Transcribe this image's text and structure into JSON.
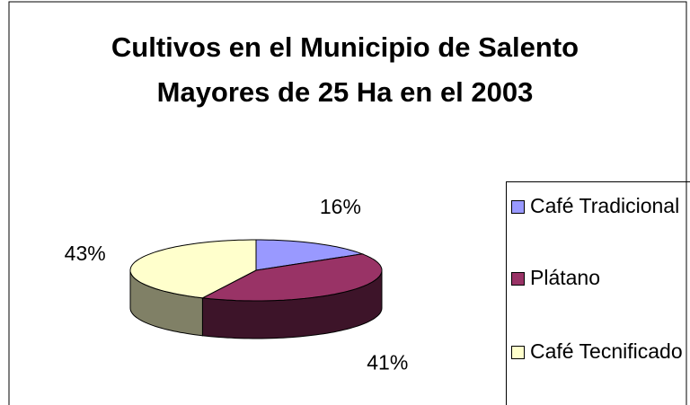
{
  "chart_data": {
    "type": "pie",
    "title": "Cultivos en el Municipio de Salento Mayores de 25 Ha en el 2003",
    "categories": [
      "Café Tradicional",
      "Plátano",
      "Café Tecnificado"
    ],
    "values": [
      16,
      41,
      43
    ],
    "value_labels": [
      "16%",
      "41%",
      "43%"
    ],
    "colors": [
      "#9999ff",
      "#993366",
      "#ffffcc"
    ],
    "legend": "right"
  }
}
